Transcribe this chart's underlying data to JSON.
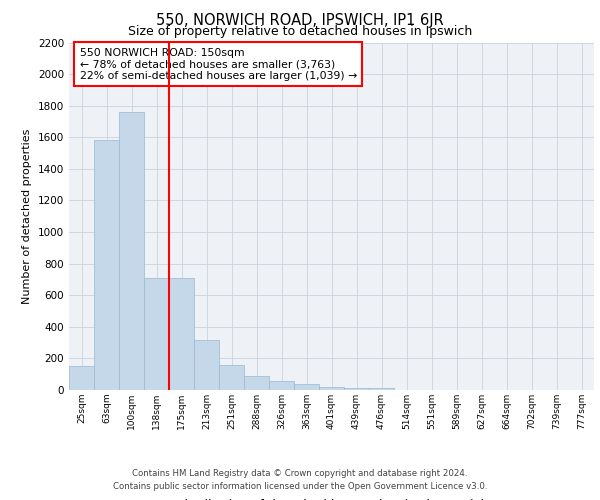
{
  "title": "550, NORWICH ROAD, IPSWICH, IP1 6JR",
  "subtitle": "Size of property relative to detached houses in Ipswich",
  "xlabel": "Distribution of detached houses by size in Ipswich",
  "ylabel": "Number of detached properties",
  "categories": [
    "25sqm",
    "63sqm",
    "100sqm",
    "138sqm",
    "175sqm",
    "213sqm",
    "251sqm",
    "288sqm",
    "326sqm",
    "363sqm",
    "401sqm",
    "439sqm",
    "476sqm",
    "514sqm",
    "551sqm",
    "589sqm",
    "627sqm",
    "664sqm",
    "702sqm",
    "739sqm",
    "777sqm"
  ],
  "values": [
    155,
    1585,
    1760,
    710,
    710,
    315,
    160,
    90,
    55,
    35,
    22,
    15,
    10,
    0,
    0,
    0,
    0,
    0,
    0,
    0,
    0
  ],
  "bar_color": "#c5d8ea",
  "bar_edge_color": "#9ab8cf",
  "grid_color": "#c8d4e0",
  "vline_x_index": 3.5,
  "vline_color": "red",
  "annotation_text": "550 NORWICH ROAD: 150sqm\n← 78% of detached houses are smaller (3,763)\n22% of semi-detached houses are larger (1,039) →",
  "ylim": [
    0,
    2200
  ],
  "yticks": [
    0,
    200,
    400,
    600,
    800,
    1000,
    1200,
    1400,
    1600,
    1800,
    2000,
    2200
  ],
  "footer_line1": "Contains HM Land Registry data © Crown copyright and database right 2024.",
  "footer_line2": "Contains public sector information licensed under the Open Government Licence v3.0.",
  "bg_color": "#eef2f7"
}
